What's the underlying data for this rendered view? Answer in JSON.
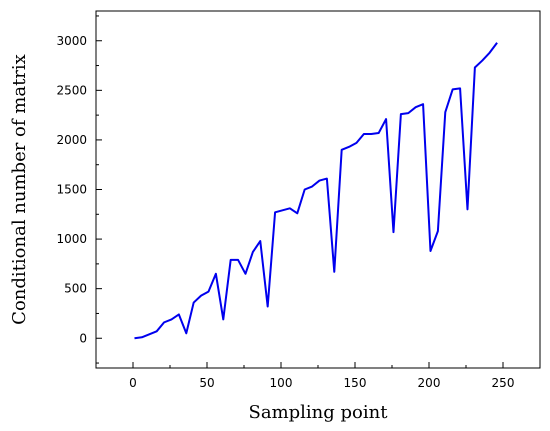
{
  "chart_data": {
    "type": "line",
    "title": "",
    "xlabel": "Sampling point",
    "ylabel": "Conditional number of matrix",
    "xlim": [
      -25,
      275
    ],
    "ylim": [
      -300,
      3300
    ],
    "x_ticks": [
      0,
      50,
      100,
      150,
      200,
      250
    ],
    "y_ticks": [
      0,
      500,
      1000,
      1500,
      2000,
      2500,
      3000
    ],
    "grid": false,
    "legend": "none",
    "series": [
      {
        "color": "#0000ee",
        "x": [
          1,
          6,
          11,
          16,
          21,
          26,
          31,
          36,
          41,
          46,
          51,
          56,
          61,
          66,
          71,
          76,
          81,
          86,
          91,
          96,
          101,
          106,
          111,
          116,
          121,
          126,
          131,
          136,
          141,
          146,
          151,
          156,
          161,
          166,
          171,
          176,
          181,
          186,
          191,
          196,
          201,
          206,
          211,
          216,
          221,
          226,
          231,
          236,
          241,
          246
        ],
        "y": [
          0,
          10,
          40,
          70,
          160,
          190,
          240,
          50,
          360,
          430,
          470,
          650,
          190,
          790,
          790,
          650,
          870,
          980,
          320,
          1270,
          1290,
          1310,
          1260,
          1500,
          1530,
          1590,
          1610,
          670,
          1900,
          1930,
          1970,
          2060,
          2060,
          2070,
          2210,
          1070,
          2260,
          2270,
          2330,
          2360,
          880,
          1080,
          2280,
          2510,
          2520,
          1300,
          2730,
          2800,
          2880,
          2980
        ]
      }
    ]
  }
}
